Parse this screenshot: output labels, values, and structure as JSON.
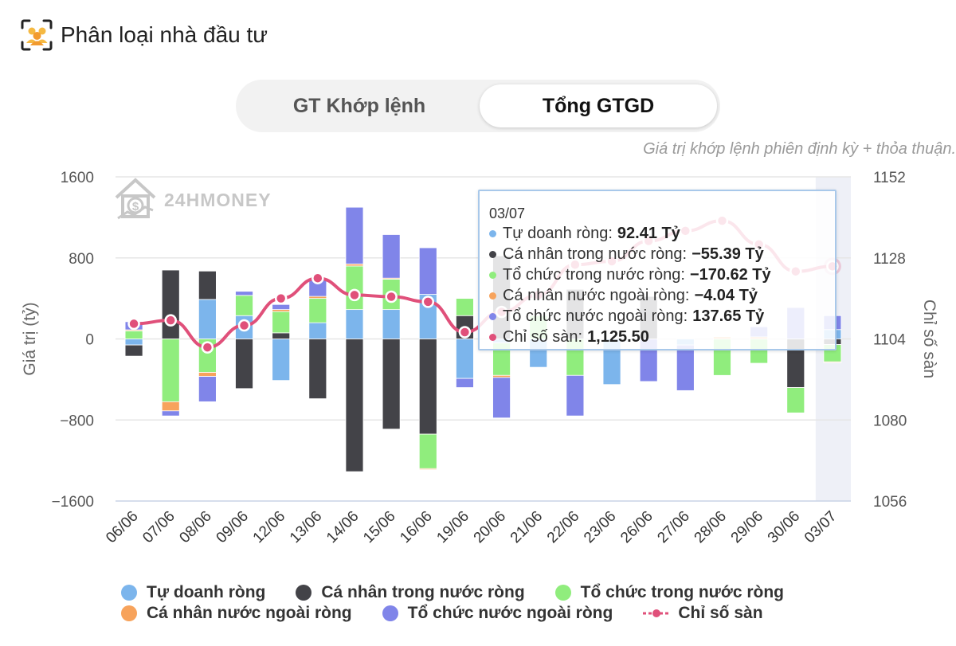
{
  "header": {
    "title": "Phân loại nhà đầu tư",
    "icon": "investor-group-icon"
  },
  "toggle": {
    "left_label": "GT Khớp lệnh",
    "right_label": "Tổng GTGD",
    "selected": "right"
  },
  "note": "Giá trị khớp lệnh phiên định kỳ + thỏa thuận.",
  "watermark": "24HMONEY",
  "colors": {
    "tu_doanh": "#7cb5ec",
    "ca_nhan_trong_nuoc": "#434348",
    "to_chuc_trong_nuoc": "#90ed7d",
    "ca_nhan_nuoc_ngoai": "#f7a35c",
    "to_chuc_nuoc_ngoai": "#8085e9",
    "chi_so_san": "#e0507a"
  },
  "chart_data": {
    "type": "bar",
    "stacked": true,
    "categories": [
      "06/06",
      "07/06",
      "08/06",
      "09/06",
      "12/06",
      "13/06",
      "14/06",
      "15/06",
      "16/06",
      "19/06",
      "20/06",
      "21/06",
      "22/06",
      "23/06",
      "26/06",
      "27/06",
      "28/06",
      "29/06",
      "30/06",
      "03/07"
    ],
    "ylabel": "Giá trị (tỷ)",
    "y2label": "Chỉ số sàn",
    "ylim": [
      -1600,
      1600
    ],
    "y2lim": [
      1056,
      1152
    ],
    "yticks": [
      "1600",
      "800",
      "0",
      "−800",
      "−1600"
    ],
    "y2ticks": [
      "1152",
      "1128",
      "1104",
      "1080",
      "1056"
    ],
    "series": [
      {
        "name": "Tự doanh ròng",
        "key": "tu_doanh",
        "values": [
          -60,
          0,
          390,
          230,
          -410,
          160,
          290,
          290,
          440,
          -390,
          -40,
          -280,
          0,
          -450,
          0,
          -60,
          0,
          0,
          0,
          92.41
        ]
      },
      {
        "name": "Cá nhân trong nước ròng",
        "key": "ca_nhan_trong_nuoc",
        "values": [
          -110,
          680,
          280,
          -490,
          60,
          -590,
          -1310,
          -890,
          -940,
          230,
          820,
          0,
          490,
          0,
          420,
          0,
          0,
          0,
          -480,
          -55.39
        ]
      },
      {
        "name": "Tổ chức trong nước ròng",
        "key": "to_chuc_trong_nuoc",
        "values": [
          80,
          -620,
          -330,
          200,
          210,
          240,
          430,
          300,
          -340,
          170,
          -320,
          230,
          -360,
          0,
          0,
          0,
          -360,
          -240,
          -250,
          -170.62
        ]
      },
      {
        "name": "Cá nhân nước ngoài ròng",
        "key": "ca_nhan_nuoc_ngoai",
        "values": [
          10,
          -90,
          -40,
          0,
          20,
          20,
          20,
          10,
          -10,
          0,
          -20,
          0,
          0,
          0,
          0,
          0,
          20,
          20,
          0,
          -4.04
        ]
      },
      {
        "name": "Tổ chức nước ngoài ròng",
        "key": "to_chuc_nuoc_ngoai",
        "values": [
          80,
          -50,
          -250,
          40,
          50,
          170,
          560,
          430,
          460,
          -90,
          -400,
          0,
          -400,
          0,
          -420,
          -450,
          0,
          100,
          310,
          137.65
        ]
      }
    ],
    "line": {
      "name": "Chỉ số sàn",
      "key": "chi_so_san",
      "values": [
        1108.5,
        1109.5,
        1101.5,
        1108,
        1116,
        1122,
        1117,
        1116.5,
        1115,
        1106,
        1112,
        1117,
        1126,
        1127,
        1133,
        1136,
        1139,
        1132,
        1124,
        1125.5
      ]
    },
    "highlight_index": 19
  },
  "tooltip": {
    "date": "03/07",
    "rows": [
      {
        "label": "Tự doanh ròng:",
        "value": "92.41 Tỷ",
        "key": "tu_doanh"
      },
      {
        "label": "Cá nhân trong nước ròng:",
        "value": "−55.39 Tỷ",
        "key": "ca_nhan_trong_nuoc"
      },
      {
        "label": "Tổ chức trong nước ròng:",
        "value": "−170.62 Tỷ",
        "key": "to_chuc_trong_nuoc"
      },
      {
        "label": "Cá nhân nước ngoài ròng:",
        "value": "−4.04 Tỷ",
        "key": "ca_nhan_nuoc_ngoai"
      },
      {
        "label": "Tổ chức nước ngoài ròng:",
        "value": "137.65 Tỷ",
        "key": "to_chuc_nuoc_ngoai"
      },
      {
        "label": "Chỉ số sàn:",
        "value": "1,125.50",
        "key": "chi_so_san"
      }
    ]
  },
  "legend": [
    {
      "label": "Tự doanh ròng",
      "key": "tu_doanh"
    },
    {
      "label": "Cá nhân trong nước ròng",
      "key": "ca_nhan_trong_nuoc"
    },
    {
      "label": "Tổ chức trong nước ròng",
      "key": "to_chuc_trong_nuoc"
    },
    {
      "label": "Cá nhân nước ngoài ròng",
      "key": "ca_nhan_nuoc_ngoai"
    },
    {
      "label": "Tổ chức nước ngoài ròng",
      "key": "to_chuc_nuoc_ngoai"
    },
    {
      "label": "Chỉ số sàn",
      "key": "chi_so_san",
      "marker": "line"
    }
  ]
}
